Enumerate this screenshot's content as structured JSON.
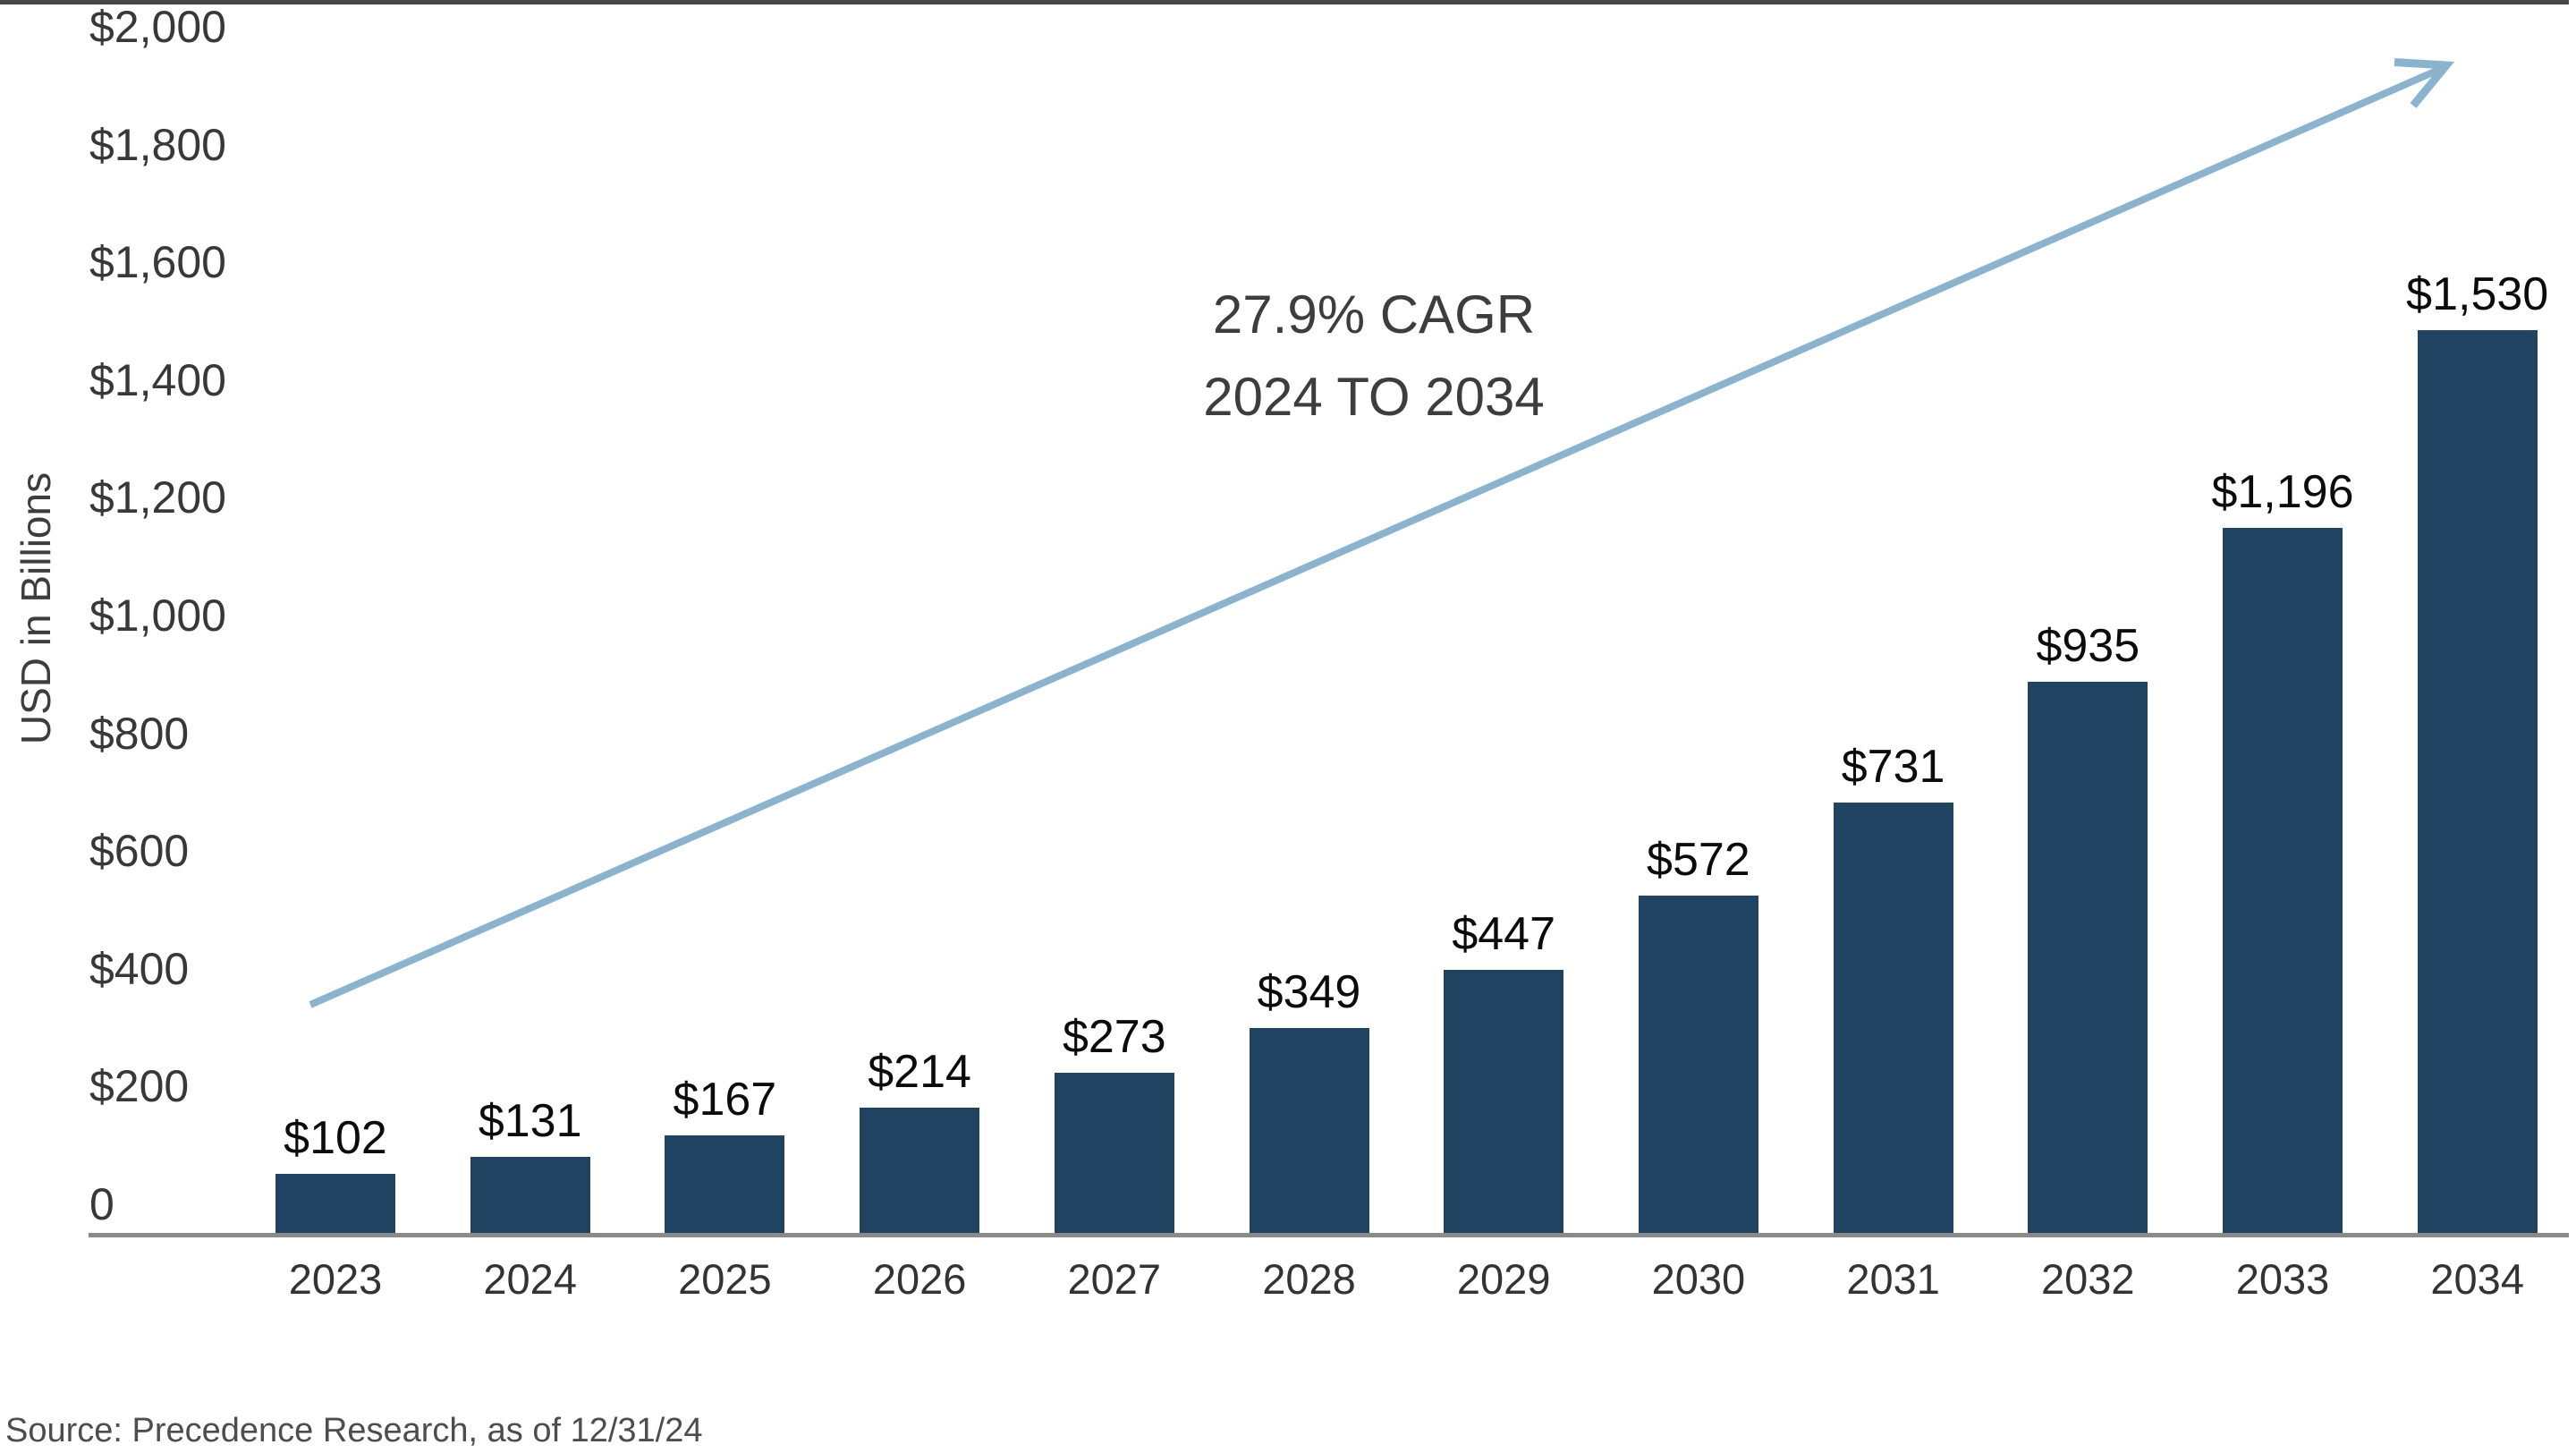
{
  "chart_data": {
    "type": "bar",
    "title": "",
    "xlabel": "",
    "ylabel": "USD in Billions",
    "categories": [
      "2023",
      "2024",
      "2025",
      "2026",
      "2027",
      "2028",
      "2029",
      "2030",
      "2031",
      "2032",
      "2033",
      "2034"
    ],
    "values": [
      102,
      131,
      167,
      214,
      273,
      349,
      447,
      572,
      731,
      935,
      1196,
      1530
    ],
    "bar_labels": [
      "$102",
      "$131",
      "$167",
      "$214",
      "$273",
      "$349",
      "$447",
      "$572",
      "$731",
      "$935",
      "$1,196",
      "$1,530"
    ],
    "ylim": [
      0,
      2000
    ],
    "ytick_interval": 200,
    "yticks": [
      "$2,000",
      "$1,800",
      "$1,600",
      "$1,400",
      "$1,200",
      "$1,000",
      "$800",
      "$600",
      "$400",
      "$200",
      "0"
    ],
    "grid": false,
    "legend": null,
    "bar_color": "#1f4360",
    "annotation": {
      "line1": "27.9% CAGR",
      "line2": "2024 TO 2034"
    },
    "trend_arrow": {
      "direction": "up-right",
      "color": "#8bb3ce"
    },
    "source": "Source: Precedence Research, as of 12/31/24"
  }
}
